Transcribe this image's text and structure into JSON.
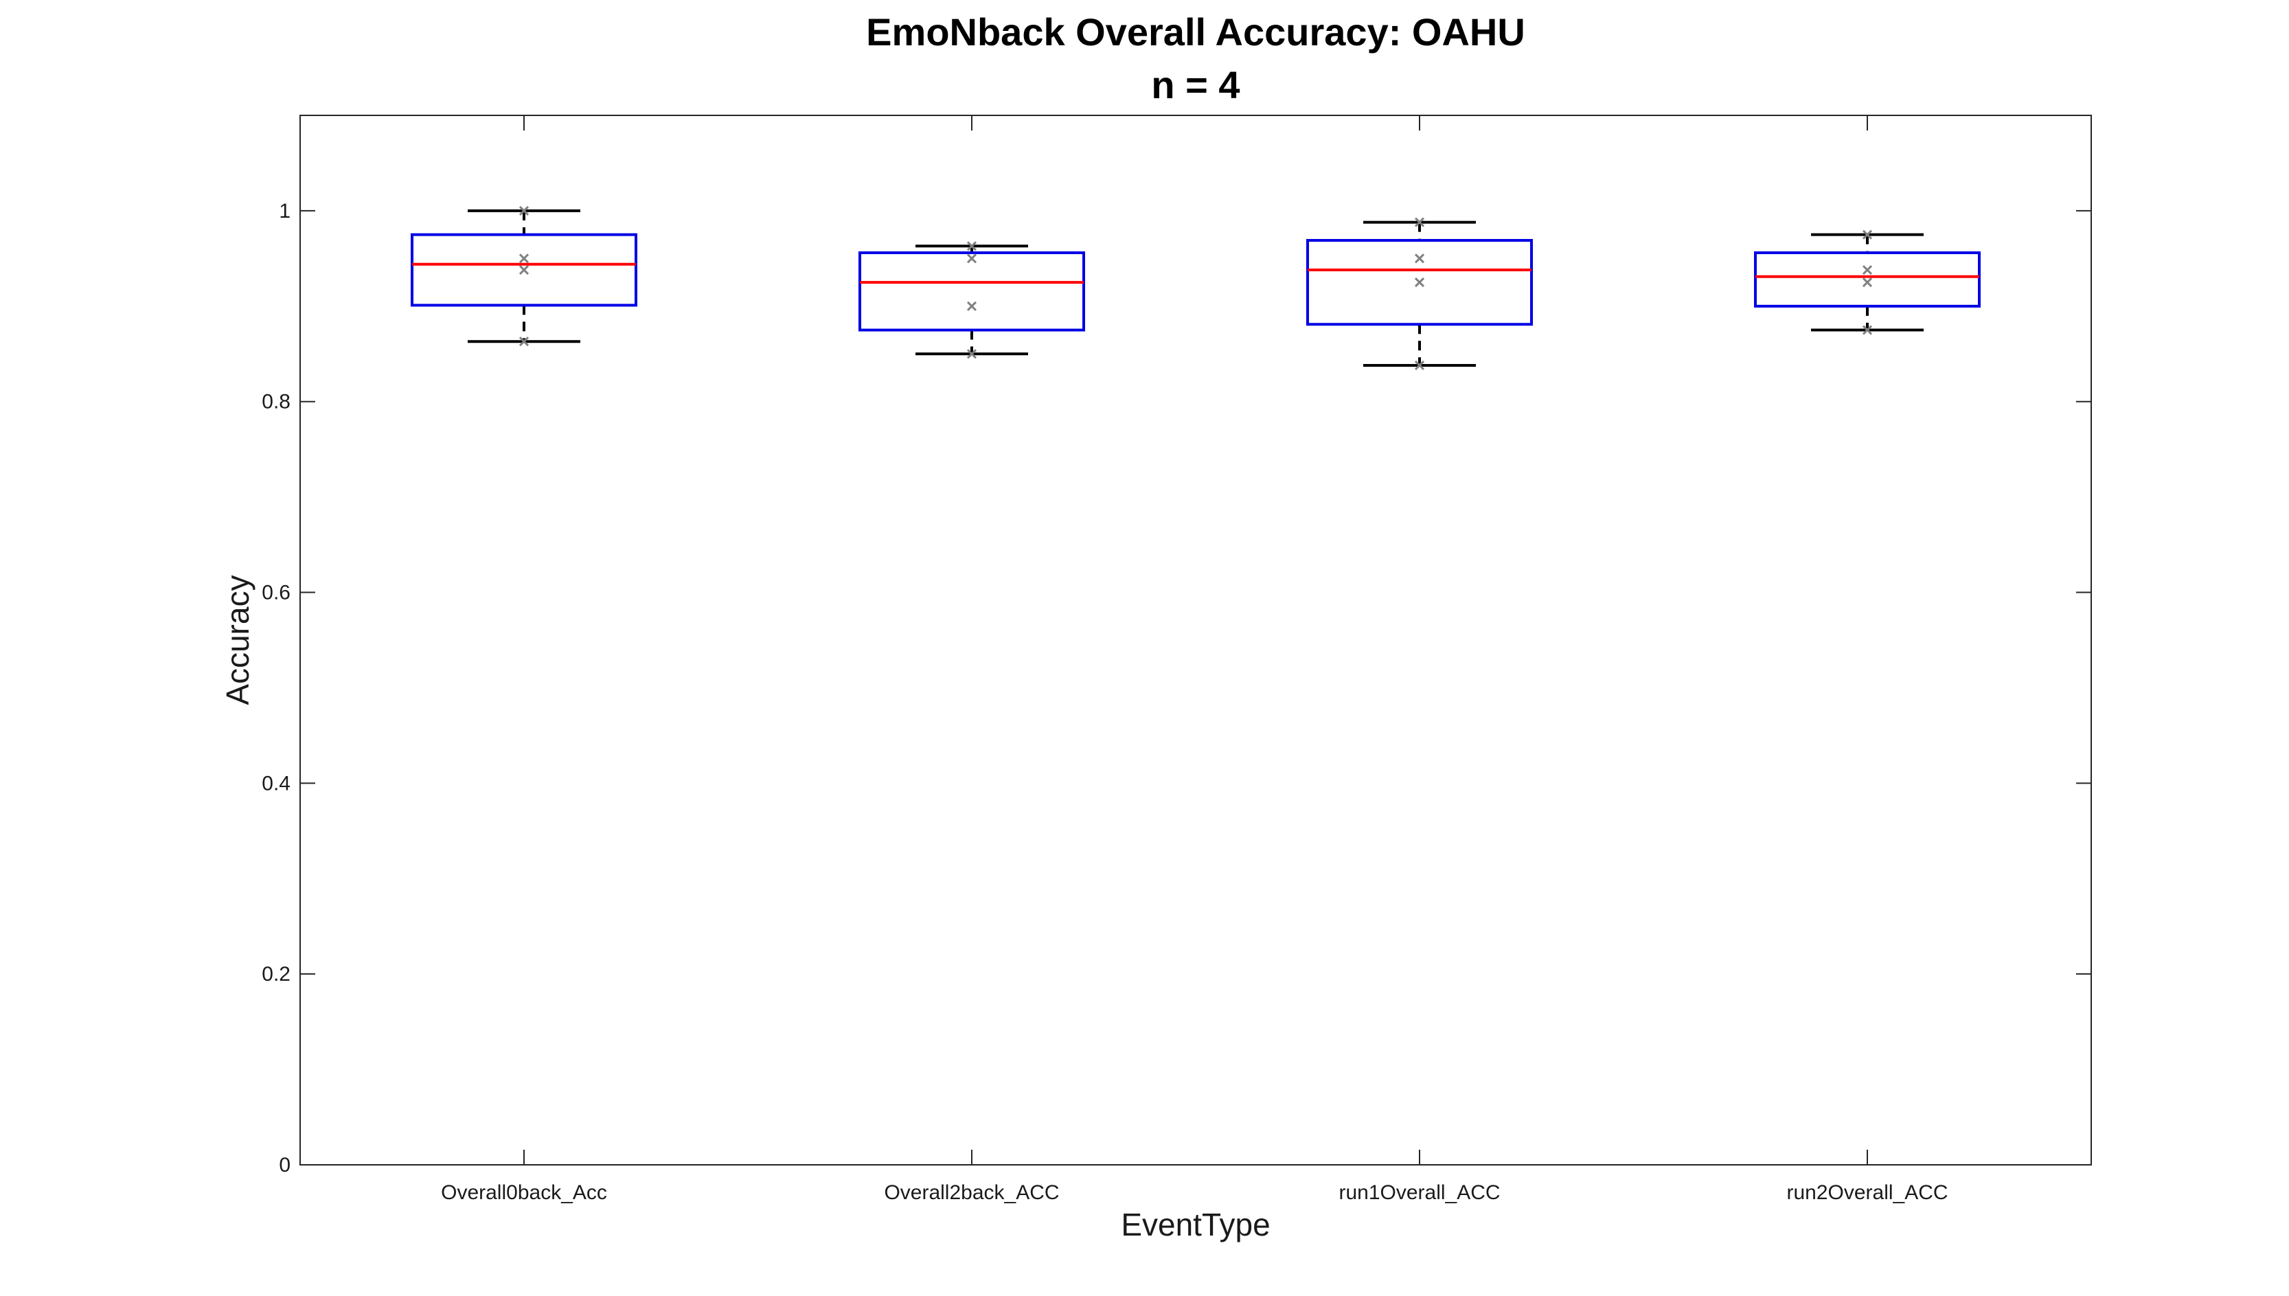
{
  "chart_data": {
    "type": "boxplot",
    "title": "EmoNback Overall Accuracy: OAHU",
    "subtitle": "n = 4",
    "xlabel": "EventType",
    "ylabel": "Accuracy",
    "ylim": [
      0,
      1.1
    ],
    "yticks": [
      0,
      0.2,
      0.4,
      0.6,
      0.8,
      1
    ],
    "ytick_labels": [
      "0",
      "0.2",
      "0.4",
      "0.6",
      "0.8",
      "1"
    ],
    "grid": false,
    "colors": {
      "box": "#0000e6",
      "median": "#ff0000",
      "whisker": "#000000",
      "point": "#808080"
    },
    "categories": [
      "Overall0back_Acc",
      "Overall2back_ACC",
      "run1Overall_ACC",
      "run2Overall_ACC"
    ],
    "boxes": [
      {
        "category": "Overall0back_Acc",
        "whisker_low": 0.863,
        "q1": 0.901,
        "median": 0.944,
        "q3": 0.975,
        "whisker_high": 1.0,
        "points": [
          1.0,
          0.95,
          0.938,
          0.863
        ]
      },
      {
        "category": "Overall2back_ACC",
        "whisker_low": 0.85,
        "q1": 0.875,
        "median": 0.925,
        "q3": 0.956,
        "whisker_high": 0.963,
        "points": [
          0.963,
          0.95,
          0.9,
          0.85
        ]
      },
      {
        "category": "run1Overall_ACC",
        "whisker_low": 0.838,
        "q1": 0.881,
        "median": 0.938,
        "q3": 0.969,
        "whisker_high": 0.988,
        "points": [
          0.988,
          0.95,
          0.925,
          0.838
        ]
      },
      {
        "category": "run2Overall_ACC",
        "whisker_low": 0.875,
        "q1": 0.9,
        "median": 0.931,
        "q3": 0.956,
        "whisker_high": 0.975,
        "points": [
          0.975,
          0.938,
          0.925,
          0.875
        ]
      }
    ]
  }
}
